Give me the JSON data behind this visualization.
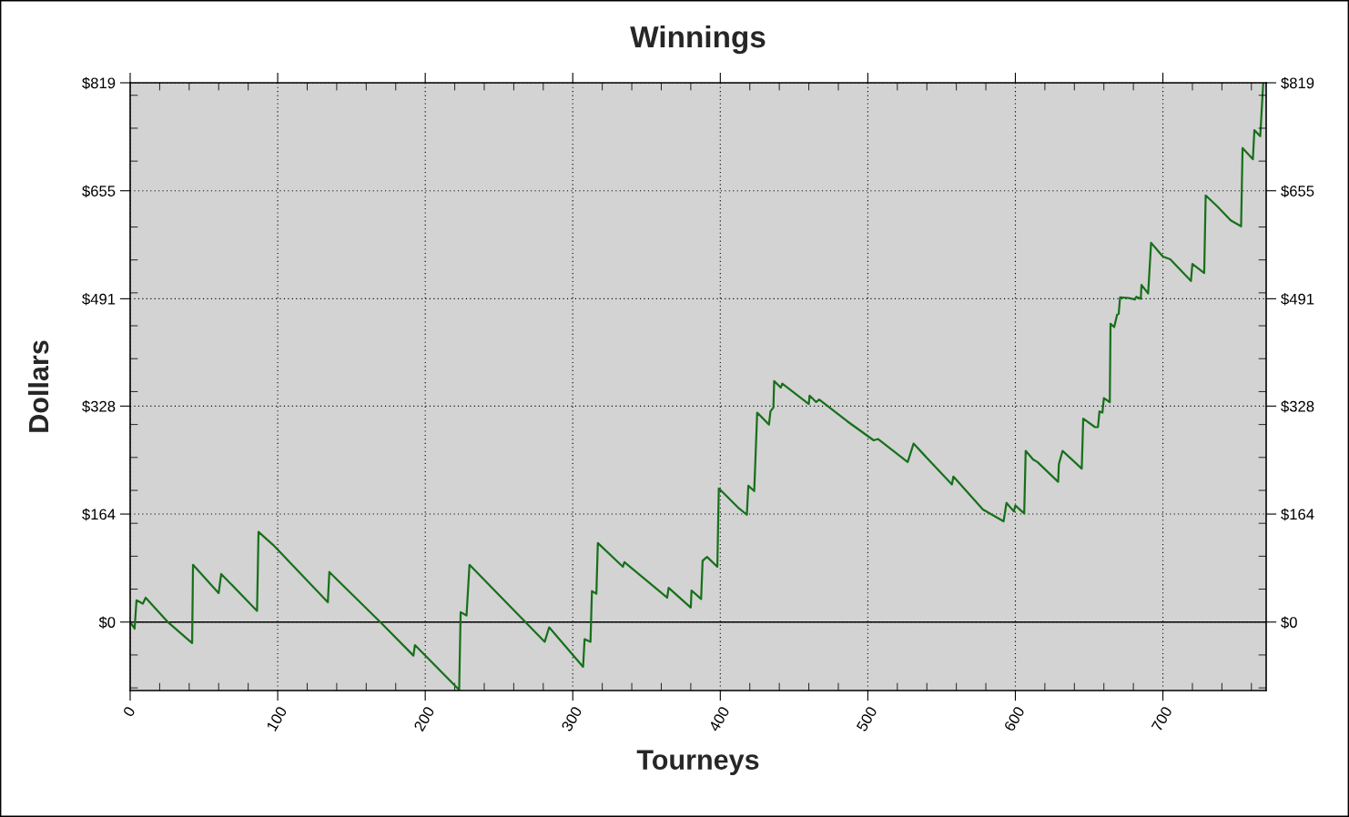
{
  "chart_data": {
    "type": "line",
    "title": "Winnings",
    "xlabel": "Tourneys",
    "ylabel": "Dollars",
    "x": [
      0,
      3,
      4.3,
      8.6,
      10.5,
      26,
      42,
      42.6,
      60,
      61.7,
      86,
      87,
      97,
      134,
      135,
      170,
      192,
      193,
      223,
      224,
      228,
      230,
      281,
      284,
      307,
      308,
      312,
      313,
      316,
      317,
      334,
      335,
      364,
      365,
      380,
      380.5,
      387,
      388,
      391,
      398,
      399,
      412,
      418,
      419,
      423,
      425,
      433,
      434,
      436,
      436.5,
      441,
      442,
      460,
      460.5,
      465,
      467,
      486,
      504,
      507,
      527,
      531,
      541,
      557,
      558,
      578,
      592,
      594,
      599,
      600,
      606,
      607,
      612,
      615,
      629,
      629.5,
      632,
      645,
      646,
      654,
      656,
      657,
      659,
      660,
      664,
      664.5,
      667,
      669,
      670,
      671,
      677,
      681,
      682,
      685,
      685.5,
      690,
      692,
      700,
      705,
      719,
      720,
      728,
      729,
      737,
      746,
      753,
      754,
      761,
      762,
      766,
      768
    ],
    "series": [
      {
        "color": "#17701a",
        "values": [
          0,
          -10,
          33,
          28,
          37,
          -1,
          -32,
          87,
          44,
          73,
          17,
          137,
          117,
          30,
          76,
          -1,
          -51,
          -35,
          -103,
          15,
          10,
          87,
          -30,
          -8,
          -68,
          -26,
          -30,
          47,
          43,
          120,
          84,
          91,
          37,
          52,
          22,
          48,
          35,
          93,
          99,
          84,
          203,
          174,
          163,
          207,
          199,
          318,
          300,
          320,
          326,
          366,
          356,
          362,
          331,
          344,
          334,
          338,
          305,
          276,
          278,
          243,
          271,
          247,
          209,
          221,
          171,
          153,
          181,
          168,
          177,
          165,
          260,
          247,
          243,
          213,
          240,
          260,
          233,
          309,
          296,
          296,
          320,
          318,
          340,
          334,
          453,
          448,
          467,
          468,
          493,
          492,
          490,
          494,
          491,
          512,
          499,
          576,
          555,
          551,
          518,
          544,
          530,
          648,
          631,
          610,
          601,
          720,
          703,
          747,
          738,
          819
        ]
      }
    ],
    "xlim": [
      0,
      770
    ],
    "ylim": [
      -104,
      819
    ],
    "y2lim": [
      -104,
      819
    ],
    "xticks": [
      0,
      {
        "value": 20,
        "label": null
      },
      {
        "value": 40,
        "label": null
      },
      {
        "value": 60,
        "label": null
      },
      {
        "value": 80,
        "label": null
      },
      100,
      {
        "value": 120,
        "label": null
      },
      {
        "value": 140,
        "label": null
      },
      {
        "value": 160,
        "label": null
      },
      {
        "value": 180,
        "label": null
      },
      200,
      {
        "value": 220,
        "label": null
      },
      {
        "value": 240,
        "label": null
      },
      {
        "value": 260,
        "label": null
      },
      {
        "value": 280,
        "label": null
      },
      300,
      {
        "value": 320,
        "label": null
      },
      {
        "value": 340,
        "label": null
      },
      {
        "value": 360,
        "label": null
      },
      {
        "value": 380,
        "label": null
      },
      400,
      {
        "value": 420,
        "label": null
      },
      {
        "value": 440,
        "label": null
      },
      {
        "value": 460,
        "label": null
      },
      {
        "value": 480,
        "label": null
      },
      500,
      {
        "value": 520,
        "label": null
      },
      {
        "value": 540,
        "label": null
      },
      {
        "value": 560,
        "label": null
      },
      {
        "value": 580,
        "label": null
      },
      600,
      {
        "value": 620,
        "label": null
      },
      {
        "value": 640,
        "label": null
      },
      {
        "value": 660,
        "label": null
      },
      {
        "value": 680,
        "label": null
      },
      700,
      {
        "value": 720,
        "label": null
      },
      {
        "value": 740,
        "label": null
      },
      {
        "value": 760,
        "label": null
      }
    ],
    "yticks": [
      {
        "value": -100,
        "label": null
      },
      {
        "value": -50,
        "label": null
      },
      {
        "value": 0,
        "label": "$0"
      },
      {
        "value": 50,
        "label": null
      },
      {
        "value": 100,
        "label": null
      },
      {
        "value": 150,
        "label": null
      },
      {
        "value": 164,
        "label": "$164"
      },
      {
        "value": 200,
        "label": null
      },
      {
        "value": 250,
        "label": null
      },
      {
        "value": 300,
        "label": null
      },
      {
        "value": 328,
        "label": "$328"
      },
      {
        "value": 350,
        "label": null
      },
      {
        "value": 400,
        "label": null
      },
      {
        "value": 450,
        "label": null
      },
      {
        "value": 491,
        "label": "$491"
      },
      {
        "value": 500,
        "label": null
      },
      {
        "value": 550,
        "label": null
      },
      {
        "value": 600,
        "label": null
      },
      {
        "value": 655,
        "label": "$655"
      },
      {
        "value": 700,
        "label": null
      },
      {
        "value": 750,
        "label": null
      },
      {
        "value": 800,
        "label": null
      },
      {
        "value": 819,
        "label": "$819"
      }
    ],
    "y2ticks": [
      {
        "value": -100,
        "label": null
      },
      {
        "value": -50,
        "label": null
      },
      {
        "value": 0,
        "label": "$0"
      },
      {
        "value": 50,
        "label": null
      },
      {
        "value": 100,
        "label": null
      },
      {
        "value": 150,
        "label": null
      },
      {
        "value": 164,
        "label": "$164"
      },
      {
        "value": 200,
        "label": null
      },
      {
        "value": 250,
        "label": null
      },
      {
        "value": 300,
        "label": null
      },
      {
        "value": 328,
        "label": "$328"
      },
      {
        "value": 350,
        "label": null
      },
      {
        "value": 400,
        "label": null
      },
      {
        "value": 450,
        "label": null
      },
      {
        "value": 491,
        "label": "$491"
      },
      {
        "value": 500,
        "label": null
      },
      {
        "value": 550,
        "label": null
      },
      {
        "value": 600,
        "label": null
      },
      {
        "value": 655,
        "label": "$655"
      },
      {
        "value": 700,
        "label": null
      },
      {
        "value": 750,
        "label": null
      },
      {
        "value": 800,
        "label": null
      },
      {
        "value": 819,
        "label": "$819"
      }
    ],
    "ref_lines": [
      {
        "axis": "y",
        "value": 0,
        "color": "#000000",
        "line_style": "solid"
      }
    ],
    "grid": true,
    "marker": "none",
    "line_style": "solid"
  }
}
